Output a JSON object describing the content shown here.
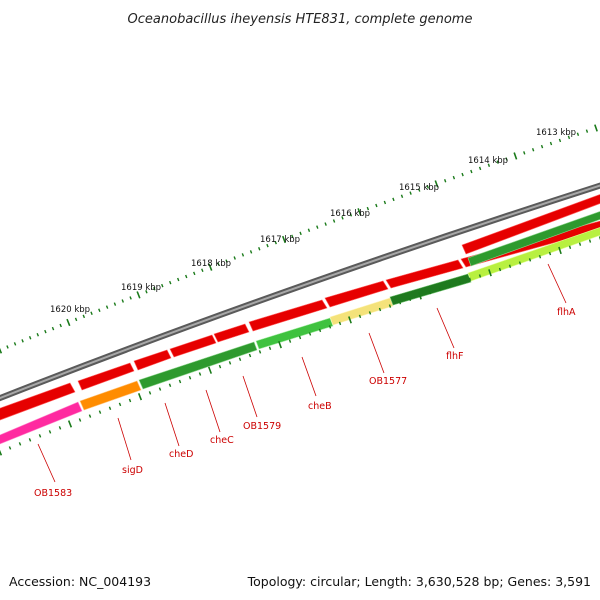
{
  "title": "Oceanobacillus iheyensis HTE831, complete genome",
  "footer": {
    "accession": "Accession: NC_004193",
    "summary": "Topology: circular; Length: 3,630,528 bp; Genes: 3,591"
  },
  "colors": {
    "backbone": "#7a7a7a",
    "cds": "#ee0000",
    "tick": "#1a7a1a",
    "label": "#cc0000"
  },
  "ruler": {
    "labels": [
      "1620 kbp",
      "1619 kbp",
      "1618 kbp",
      "1617 kbp",
      "1616 kbp",
      "1615 kbp",
      "1614 kbp",
      "1613 kbp"
    ]
  },
  "genes": [
    {
      "name": "OB1583",
      "color": "#ff2aa0"
    },
    {
      "name": "sigD",
      "color": "#ff8c00"
    },
    {
      "name": "cheD",
      "color": "#2e9a2e"
    },
    {
      "name": "cheC",
      "color": "#2e9a2e"
    },
    {
      "name": "OB1579",
      "color": "#2e9a2e"
    },
    {
      "name": "cheB",
      "color": "#3fc23f"
    },
    {
      "name": "OB1577",
      "color": "#f4e27a"
    },
    {
      "name": "flhF",
      "color": "#1f7a1f"
    },
    {
      "name": "flhA",
      "color": "#b8f040"
    }
  ]
}
